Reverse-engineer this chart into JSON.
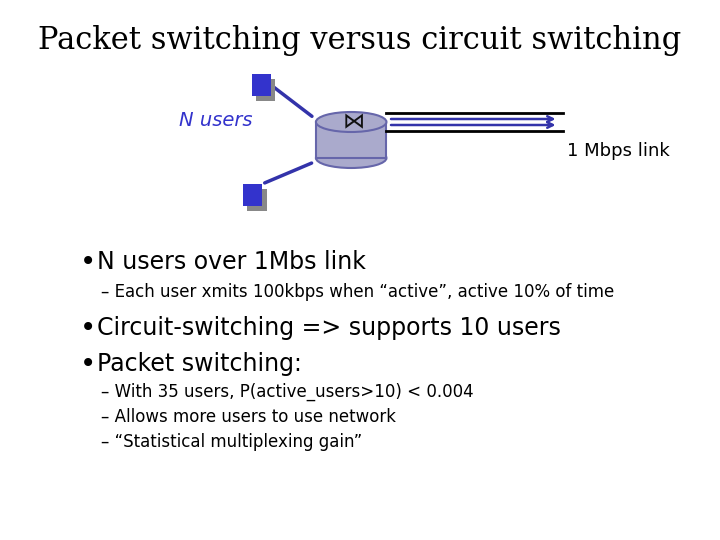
{
  "title": "Packet switching versus circuit switching",
  "title_fontsize": 22,
  "title_font": "serif",
  "background_color": "#ffffff",
  "n_users_label": "N users",
  "n_users_color": "#3333cc",
  "link_label": "1 Mbps link",
  "bullet1": "N users over 1Mbs link",
  "sub1": "Each user xmits 100kbps when “active”, active 10% of time",
  "bullet2": "Circuit-switching => supports 10 users",
  "bullet3": "Packet switching:",
  "sub3a": "With 35 users, P(active_users>10) < 0.004",
  "sub3b": "Allows more users to use network",
  "sub3c": "“Statistical multiplexing gain”",
  "node_color": "#3333cc",
  "node_gray": "#888888",
  "router_fill": "#aaaacc",
  "router_edge": "#6666aa",
  "arrow_color": "#3333aa",
  "line_color": "#000000"
}
